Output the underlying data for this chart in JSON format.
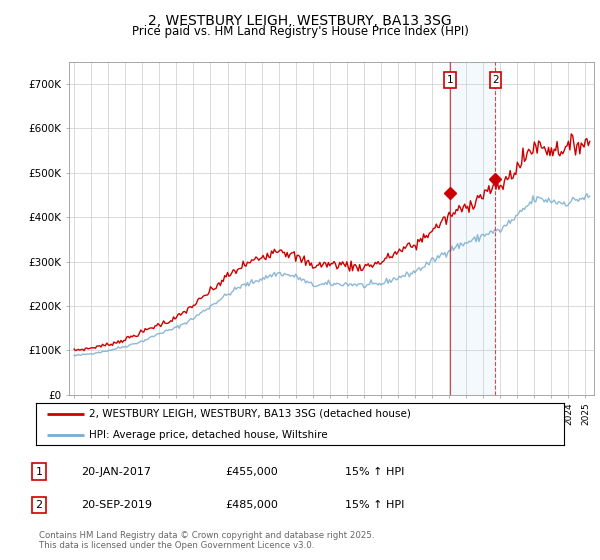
{
  "title_line1": "2, WESTBURY LEIGH, WESTBURY, BA13 3SG",
  "title_line2": "Price paid vs. HM Land Registry's House Price Index (HPI)",
  "ylim": [
    0,
    750000
  ],
  "yticks": [
    0,
    100000,
    200000,
    300000,
    400000,
    500000,
    600000,
    700000
  ],
  "ytick_labels": [
    "£0",
    "£100K",
    "£200K",
    "£300K",
    "£400K",
    "£500K",
    "£600K",
    "£700K"
  ],
  "red_color": "#cc0000",
  "blue_color": "#7aadce",
  "blue_fill_color": "#d0e8f5",
  "marker1_x": 2017.05,
  "marker1_y": 455000,
  "marker2_x": 2019.72,
  "marker2_y": 485000,
  "legend_label_red": "2, WESTBURY LEIGH, WESTBURY, BA13 3SG (detached house)",
  "legend_label_blue": "HPI: Average price, detached house, Wiltshire",
  "note1_date": "20-JAN-2017",
  "note1_price": "£455,000",
  "note1_hpi": "15% ↑ HPI",
  "note2_date": "20-SEP-2019",
  "note2_price": "£485,000",
  "note2_hpi": "15% ↑ HPI",
  "footer": "Contains HM Land Registry data © Crown copyright and database right 2025.\nThis data is licensed under the Open Government Licence v3.0.",
  "background_color": "#ffffff",
  "grid_color": "#cccccc",
  "xmin": 1994.7,
  "xmax": 2025.5
}
